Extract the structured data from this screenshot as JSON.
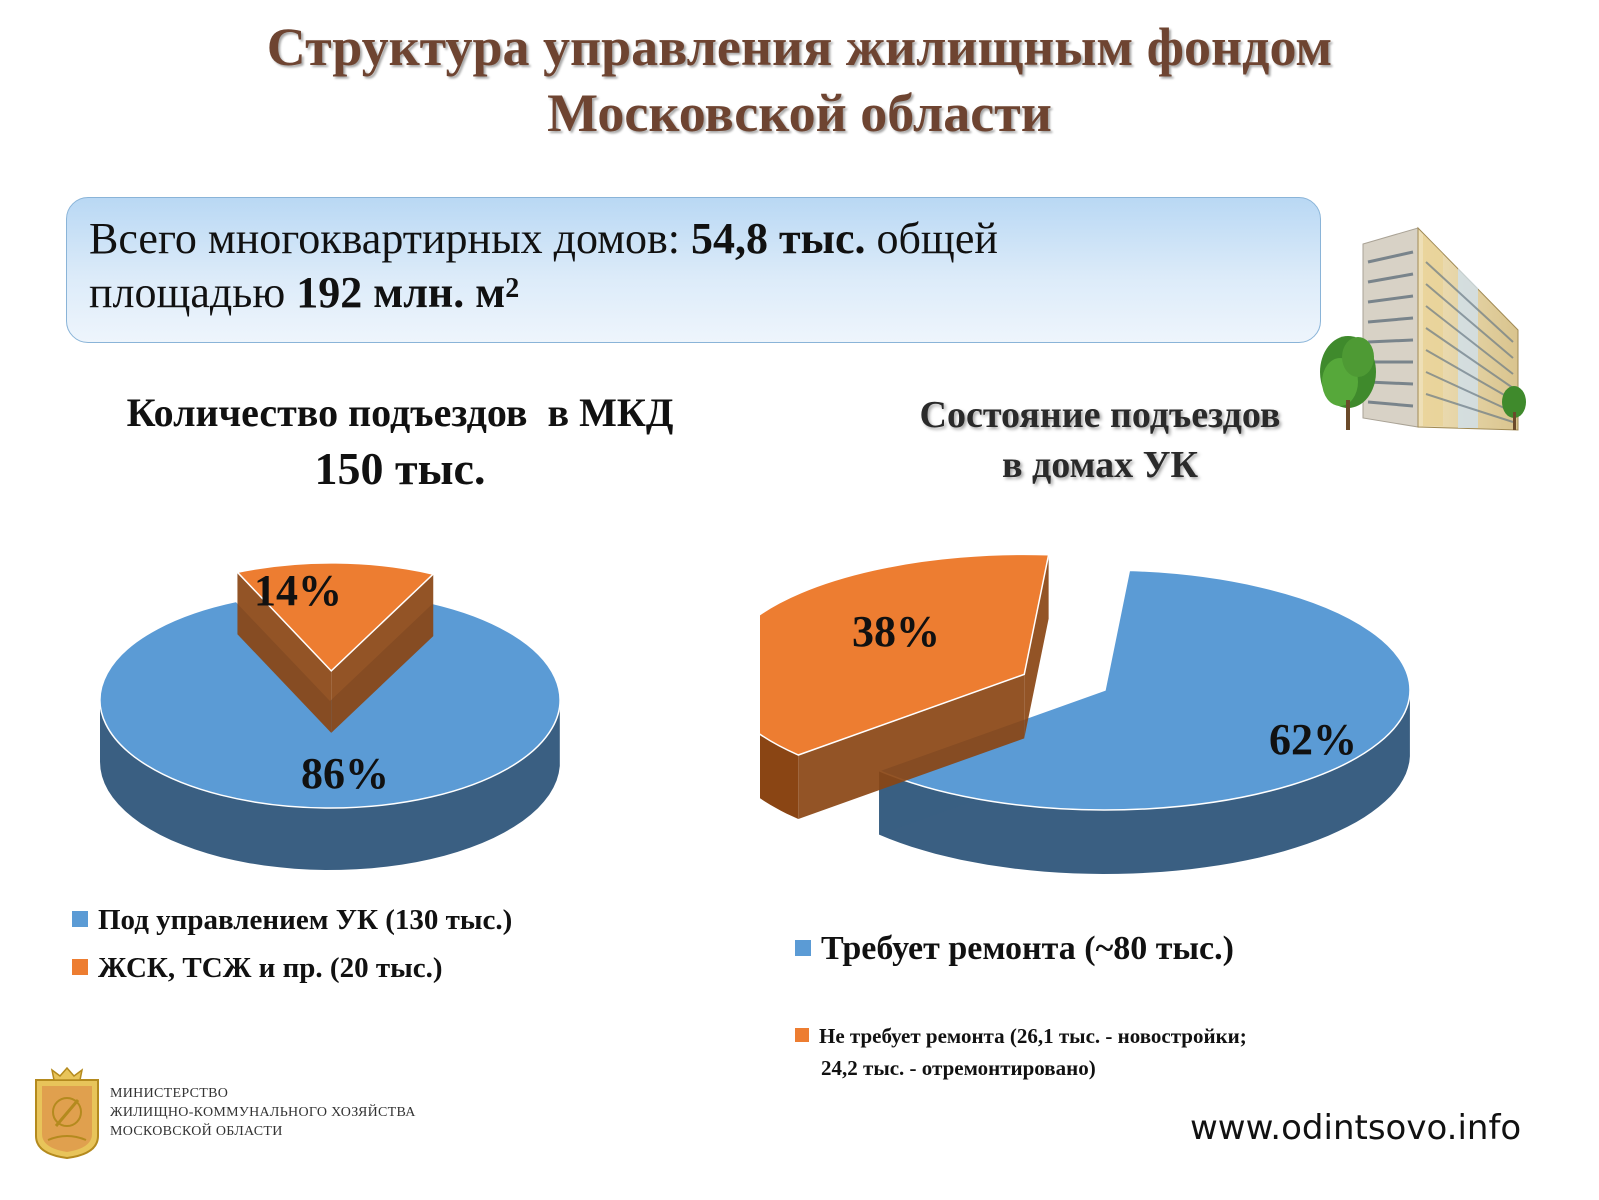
{
  "title": {
    "line1": "Структура управления жилищным фондом",
    "line2": "Московской области"
  },
  "summary": {
    "prefix": "Всего многоквартирных домов: ",
    "houses": "54,8 тыс.",
    "middle": " общей",
    "line2_prefix": "площадью ",
    "area": "192 млн. м",
    "area_sup": "2"
  },
  "left_chart_title": {
    "line1": "Количество подъездов  в МКД",
    "line2": "150 тыс."
  },
  "right_chart_title": {
    "line1": "Состояние подъездов",
    "line2": "в домах УК"
  },
  "colors": {
    "blue": "#5b9bd5",
    "blue_side": "#3a5f82",
    "orange": "#ed7d31",
    "orange_side": "#8a4514"
  },
  "chart_data": [
    {
      "type": "pie",
      "title": "Количество подъездов  в МКД 150 тыс.",
      "categories": [
        "Под управлением УК (130 тыс.)",
        "ЖСК, ТСЖ и пр. (20 тыс.)"
      ],
      "values": [
        86,
        14
      ],
      "labels": [
        "86%",
        "14%"
      ],
      "legend": "bottom"
    },
    {
      "type": "pie",
      "title": "Состояние подъездов в домах УК",
      "categories": [
        "Требует ремонта (~80 тыс.)",
        "Не требует ремонта (26,1 тыс. - новостройки; 24,2 тыс. - отремонтировано)"
      ],
      "values": [
        62,
        38
      ],
      "labels": [
        "62%",
        "38%"
      ],
      "legend": "bottom"
    }
  ],
  "legend_left": {
    "item1": "Под управлением УК (130 тыс.)",
    "item2": "ЖСК, ТСЖ и пр. (20 тыс.)"
  },
  "legend_right": {
    "item1": "Требует ремонта (~80 тыс.)",
    "item2_line1": "Не требует ремонта (26,1 тыс. - новостройки;",
    "item2_line2": "24,2 тыс. - отремонтировано)"
  },
  "ministry": {
    "line1": "МИНИСТЕРСТВО",
    "line2": "ЖИЛИЩНО-КОММУНАЛЬНОГО ХОЗЯЙСТВА",
    "line3": "МОСКОВСКОЙ ОБЛАСТИ"
  },
  "website": "www.odintsovo.info"
}
